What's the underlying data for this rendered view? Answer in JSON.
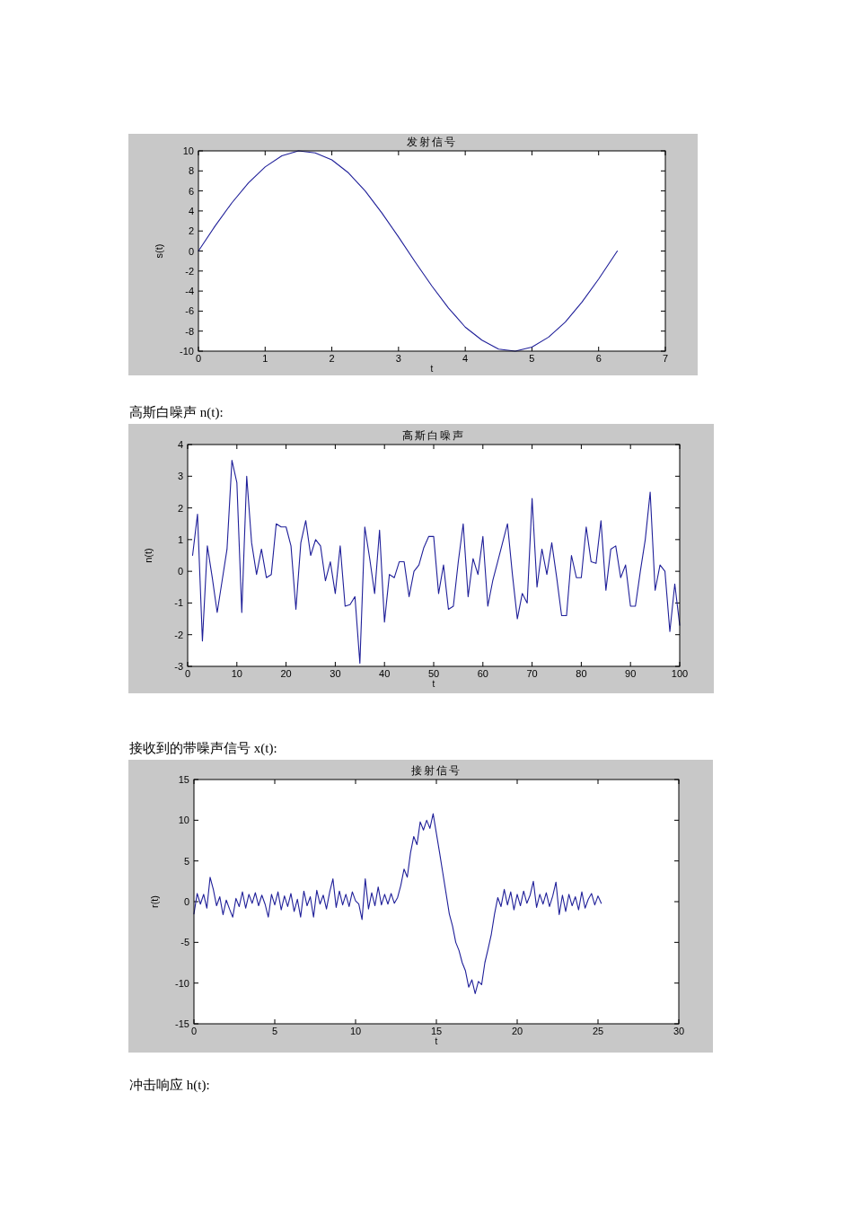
{
  "chart_data": [
    {
      "type": "line",
      "title": "发射信号",
      "xlabel": "t",
      "ylabel": "s(t)",
      "xlim": [
        0,
        7
      ],
      "ylim": [
        -10,
        10
      ],
      "xticks": [
        0,
        1,
        2,
        3,
        4,
        5,
        6,
        7
      ],
      "yticks": [
        -10,
        -8,
        -6,
        -4,
        -2,
        0,
        2,
        4,
        6,
        8,
        10
      ],
      "series": [
        {
          "color": "#1f1f99",
          "x": [
            0,
            0.25,
            0.5,
            0.75,
            1,
            1.25,
            1.5,
            1.75,
            2,
            2.25,
            2.5,
            2.75,
            3,
            3.25,
            3.5,
            3.75,
            4,
            4.25,
            4.5,
            4.75,
            5,
            5.25,
            5.5,
            5.75,
            6,
            6.28
          ],
          "values": [
            0,
            2.5,
            4.8,
            6.8,
            8.4,
            9.5,
            10,
            9.8,
            9.1,
            7.8,
            6.0,
            3.8,
            1.4,
            -1.1,
            -3.5,
            -5.7,
            -7.6,
            -8.9,
            -9.8,
            -10,
            -9.6,
            -8.6,
            -7.1,
            -5.1,
            -2.8,
            0
          ]
        }
      ]
    },
    {
      "type": "line",
      "title": "高斯白噪声",
      "xlabel": "t",
      "ylabel": "n(t)",
      "xlim": [
        0,
        100
      ],
      "ylim": [
        -3,
        4
      ],
      "xticks": [
        0,
        10,
        20,
        30,
        40,
        50,
        60,
        70,
        80,
        90,
        100
      ],
      "yticks": [
        -3,
        -2,
        -1,
        0,
        1,
        2,
        3,
        4
      ],
      "annotations": [
        "高斯白噪声 n(t):"
      ],
      "series": [
        {
          "color": "#1f1f99",
          "x": [
            1,
            2,
            3,
            4,
            5,
            6,
            7,
            8,
            9,
            10,
            11,
            12,
            13,
            14,
            15,
            16,
            17,
            18,
            19,
            20,
            21,
            22,
            23,
            24,
            25,
            26,
            27,
            28,
            29,
            30,
            31,
            32,
            33,
            34,
            35,
            36,
            37,
            38,
            39,
            40,
            41,
            42,
            43,
            44,
            45,
            46,
            47,
            48,
            49,
            50,
            51,
            52,
            53,
            54,
            55,
            56,
            57,
            58,
            59,
            60,
            61,
            62,
            63,
            64,
            65,
            66,
            67,
            68,
            69,
            70,
            71,
            72,
            73,
            74,
            75,
            76,
            77,
            78,
            79,
            80,
            81,
            82,
            83,
            84,
            85,
            86,
            87,
            88,
            89,
            90,
            91,
            92,
            93,
            94,
            95,
            96,
            97,
            98,
            99,
            100
          ],
          "values": [
            0.5,
            1.8,
            -2.2,
            0.8,
            -0.2,
            -1.3,
            -0.3,
            0.7,
            3.5,
            2.8,
            -1.3,
            3.0,
            0.9,
            -0.1,
            0.7,
            -0.2,
            -0.1,
            1.5,
            1.4,
            1.4,
            0.8,
            -1.2,
            0.9,
            1.6,
            0.5,
            1.0,
            0.8,
            -0.3,
            0.3,
            -0.7,
            0.8,
            -1.1,
            -1.05,
            -0.8,
            -2.9,
            1.4,
            0.4,
            -0.7,
            1.3,
            -1.6,
            -0.1,
            -0.2,
            0.3,
            0.3,
            -0.8,
            0.0,
            0.2,
            0.75,
            1.1,
            1.1,
            -0.7,
            0.2,
            -1.2,
            -1.1,
            0.3,
            1.5,
            -0.8,
            0.4,
            -0.1,
            1.1,
            -1.1,
            -0.3,
            0.3,
            0.9,
            1.5,
            -0.1,
            -1.5,
            -0.7,
            -1.0,
            2.3,
            -0.5,
            0.7,
            -0.1,
            0.9,
            -0.2,
            -1.4,
            -1.4,
            0.5,
            -0.2,
            -0.2,
            1.4,
            0.3,
            0.25,
            1.6,
            -0.6,
            0.7,
            0.8,
            -0.2,
            0.2,
            -1.1,
            -1.1,
            0.0,
            1.0,
            2.5,
            -0.6,
            0.2,
            0.0,
            -1.9,
            -0.4,
            -1.7
          ]
        }
      ]
    },
    {
      "type": "line",
      "title": "接射信号",
      "xlabel": "t",
      "ylabel": "r(t)",
      "xlim": [
        0,
        30
      ],
      "ylim": [
        -15,
        15
      ],
      "xticks": [
        0,
        5,
        10,
        15,
        20,
        25,
        30
      ],
      "yticks": [
        -15,
        -10,
        -5,
        0,
        5,
        10,
        15
      ],
      "annotations": [
        "接收到的带噪声信号 x(t):",
        "冲击响应 h(t):"
      ],
      "series": [
        {
          "color": "#1f1f99",
          "x": [
            0,
            0.2,
            0.4,
            0.6,
            0.8,
            1.0,
            1.2,
            1.4,
            1.6,
            1.8,
            2.0,
            2.2,
            2.4,
            2.6,
            2.8,
            3.0,
            3.2,
            3.4,
            3.6,
            3.8,
            4.0,
            4.2,
            4.4,
            4.6,
            4.8,
            5.0,
            5.2,
            5.4,
            5.6,
            5.8,
            6.0,
            6.2,
            6.4,
            6.6,
            6.8,
            7.0,
            7.2,
            7.4,
            7.6,
            7.8,
            8.0,
            8.2,
            8.4,
            8.6,
            8.8,
            9.0,
            9.2,
            9.4,
            9.6,
            9.8,
            10.0,
            10.2,
            10.4,
            10.6,
            10.8,
            11.0,
            11.2,
            11.4,
            11.6,
            11.8,
            12.0,
            12.2,
            12.4,
            12.6,
            12.8,
            13.0,
            13.2,
            13.4,
            13.6,
            13.8,
            14.0,
            14.2,
            14.4,
            14.6,
            14.8,
            15.0,
            15.2,
            15.4,
            15.6,
            15.8,
            16.0,
            16.2,
            16.4,
            16.6,
            16.8,
            17.0,
            17.2,
            17.4,
            17.6,
            17.8,
            18.0,
            18.2,
            18.4,
            18.6,
            18.8,
            19.0,
            19.2,
            19.4,
            19.6,
            19.8,
            20.0,
            20.2,
            20.4,
            20.6,
            20.8,
            21.0,
            21.2,
            21.4,
            21.6,
            21.8,
            22.0,
            22.2,
            22.4,
            22.6,
            22.8,
            23.0,
            23.2,
            23.4,
            23.6,
            23.8,
            24.0,
            24.2,
            24.4,
            24.6,
            24.8,
            25.0,
            25.2
          ],
          "values": [
            -1.5,
            1.0,
            -0.3,
            0.9,
            -0.8,
            3.0,
            1.5,
            -0.5,
            0.6,
            -1.6,
            0.2,
            -0.9,
            -1.9,
            0.4,
            -0.6,
            1.2,
            -0.8,
            0.9,
            -0.2,
            1.1,
            -0.5,
            0.8,
            -0.3,
            -1.9,
            0.9,
            -0.4,
            1.2,
            -1.0,
            0.7,
            -0.6,
            1.0,
            -1.2,
            0.3,
            -1.9,
            1.3,
            -0.5,
            0.6,
            -1.9,
            1.4,
            -0.3,
            0.8,
            -0.9,
            1.2,
            2.8,
            -0.7,
            1.3,
            -0.4,
            0.9,
            -0.6,
            1.2,
            0.1,
            -0.3,
            -2.2,
            2.8,
            -0.9,
            1.1,
            -0.5,
            1.8,
            -0.4,
            0.9,
            -0.3,
            1.0,
            -0.2,
            0.5,
            2.0,
            4.0,
            3.0,
            6.0,
            8.0,
            7.0,
            9.8,
            8.8,
            10.0,
            9.0,
            10.8,
            8.4,
            6.0,
            3.5,
            1.0,
            -1.5,
            -3.0,
            -5.0,
            -6.0,
            -7.5,
            -8.5,
            -10.5,
            -9.6,
            -11.3,
            -9.8,
            -10.2,
            -7.5,
            -5.8,
            -4.0,
            -1.5,
            0.5,
            -0.6,
            1.5,
            -0.4,
            1.2,
            -1.0,
            0.9,
            -0.5,
            1.3,
            -0.2,
            0.8,
            2.5,
            -0.7,
            0.9,
            -0.3,
            1.1,
            -0.6,
            0.7,
            2.4,
            -1.6,
            0.8,
            -1.2,
            0.9,
            -0.5,
            0.6,
            -1.0,
            1.2,
            -0.8,
            0.3,
            1.0,
            -0.4,
            0.7,
            -0.2
          ]
        }
      ]
    }
  ]
}
